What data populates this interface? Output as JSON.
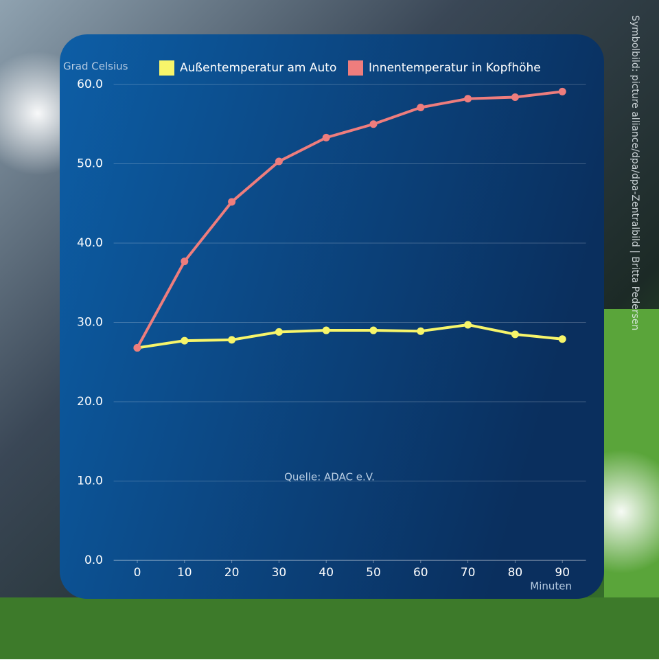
{
  "chart_data": {
    "type": "line",
    "y_label": "Grad Celsius",
    "x_label": "Minuten",
    "source": "Quelle: ADAC e.V.",
    "credit": "Symbolbild: picture alliance/dpa/dpa-Zentralbild | Britta Pedersen",
    "x": [
      0,
      10,
      20,
      30,
      40,
      50,
      60,
      70,
      80,
      90
    ],
    "series": [
      {
        "name": "Außentemperatur am Auto",
        "color": "#f7f56a",
        "values": [
          26.8,
          27.7,
          27.8,
          28.8,
          29.0,
          29.0,
          28.9,
          29.7,
          28.5,
          27.9
        ]
      },
      {
        "name": "Innentemperatur in Kopfhöhe",
        "color": "#ee7d7d",
        "values": [
          26.8,
          37.7,
          45.2,
          50.3,
          53.3,
          55.0,
          57.1,
          58.2,
          58.4,
          59.1
        ]
      }
    ],
    "xlim": [
      -5,
      95
    ],
    "xticks": [
      0,
      10,
      20,
      30,
      40,
      50,
      60,
      70,
      80,
      90
    ],
    "ylim": [
      0,
      60
    ],
    "yticks": [
      {
        "value": 0,
        "label": "0.0"
      },
      {
        "value": 10,
        "label": "10.0"
      },
      {
        "value": 20,
        "label": "20.0"
      },
      {
        "value": 30,
        "label": "30.0"
      },
      {
        "value": 40,
        "label": "40.0"
      },
      {
        "value": 50,
        "label": "50.0"
      },
      {
        "value": 60,
        "label": "60.0"
      }
    ],
    "grid": true,
    "legend": "top"
  }
}
